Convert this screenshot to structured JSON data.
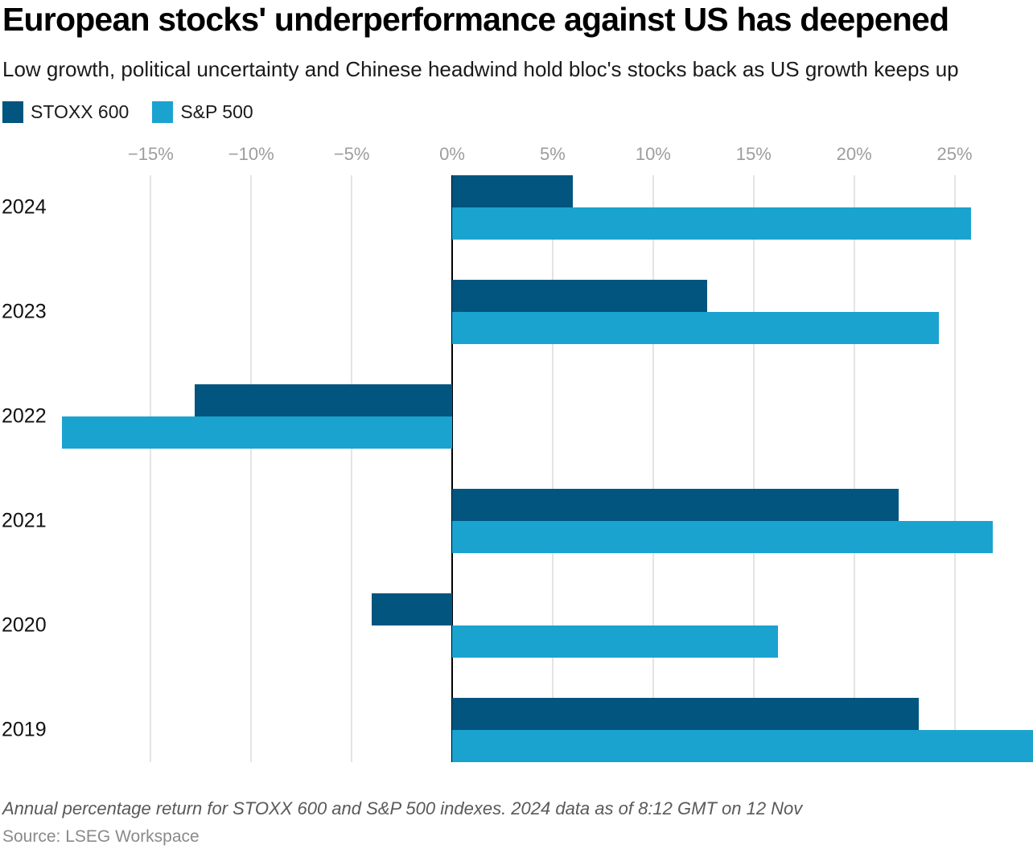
{
  "header": {
    "title": "European stocks' underperformance against US has deepened",
    "subtitle": "Low growth, political uncertainty and Chinese headwind hold bloc's stocks back as US growth keeps up"
  },
  "legend": [
    {
      "label": "STOXX 600",
      "color": "#01557E"
    },
    {
      "label": "S&P 500",
      "color": "#1BA3CF"
    }
  ],
  "chart_data": {
    "type": "bar",
    "orientation": "horizontal",
    "title": "European stocks' underperformance against US has deepened",
    "subtitle": "Low growth, political uncertainty and Chinese headwind hold bloc's stocks back as US growth keeps up",
    "categories": [
      "2024",
      "2023",
      "2022",
      "2021",
      "2020",
      "2019"
    ],
    "series": [
      {
        "name": "STOXX 600",
        "color": "#01557E",
        "values": [
          6.0,
          12.7,
          -12.8,
          22.2,
          -4.0,
          23.2
        ]
      },
      {
        "name": "S&P 500",
        "color": "#1BA3CF",
        "values": [
          25.8,
          24.2,
          -19.4,
          26.9,
          16.2,
          28.9
        ]
      }
    ],
    "x_ticks": [
      -15,
      -10,
      -5,
      0,
      5,
      10,
      15,
      20,
      25
    ],
    "x_tick_labels": [
      "−15%",
      "−10%",
      "−5%",
      "0%",
      "5%",
      "10%",
      "15%",
      "20%",
      "25%"
    ],
    "xlim": [
      -22.5,
      28.9
    ],
    "unit": "%",
    "grid": true,
    "legend_position": "top-left",
    "gridline_color": "#e4e4e4",
    "zero_line_color": "#000000",
    "tick_label_color": "#9d9d9d"
  },
  "footer": {
    "note": "Annual percentage return for STOXX 600 and S&P 500 indexes. 2024 data as of 8:12 GMT on 12 Nov",
    "source": "Source: LSEG Workspace"
  }
}
